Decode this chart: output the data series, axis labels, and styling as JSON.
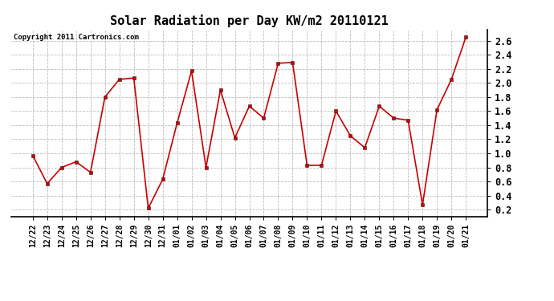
{
  "title": "Solar Radiation per Day KW/m2 20110121",
  "copyright": "Copyright 2011 Cartronics.com",
  "dates": [
    "12/22",
    "12/23",
    "12/24",
    "12/25",
    "12/26",
    "12/27",
    "12/28",
    "12/29",
    "12/30",
    "12/31",
    "01/01",
    "01/02",
    "01/03",
    "01/04",
    "01/05",
    "01/06",
    "01/07",
    "01/08",
    "01/09",
    "01/10",
    "01/11",
    "01/12",
    "01/13",
    "01/14",
    "01/15",
    "01/16",
    "01/17",
    "01/18",
    "01/19",
    "01/20",
    "01/21"
  ],
  "values": [
    0.97,
    0.57,
    0.8,
    0.88,
    0.73,
    1.8,
    2.05,
    2.07,
    0.22,
    0.63,
    1.43,
    2.17,
    0.8,
    1.9,
    1.22,
    1.67,
    1.5,
    2.28,
    2.29,
    0.83,
    0.83,
    1.6,
    1.25,
    1.08,
    1.67,
    1.5,
    1.47,
    0.27,
    1.62,
    2.05,
    2.65
  ],
  "line_color": "#cc0000",
  "marker": "s",
  "marker_size": 2.5,
  "ylim": [
    0.1,
    2.75
  ],
  "yticks": [
    0.2,
    0.4,
    0.6,
    0.8,
    1.0,
    1.2,
    1.4,
    1.6,
    1.8,
    2.0,
    2.2,
    2.4,
    2.6
  ],
  "background_color": "#ffffff",
  "grid_color": "#bbbbbb",
  "title_fontsize": 11,
  "copyright_fontsize": 6.5,
  "tick_fontsize": 8.5,
  "xtick_fontsize": 7
}
